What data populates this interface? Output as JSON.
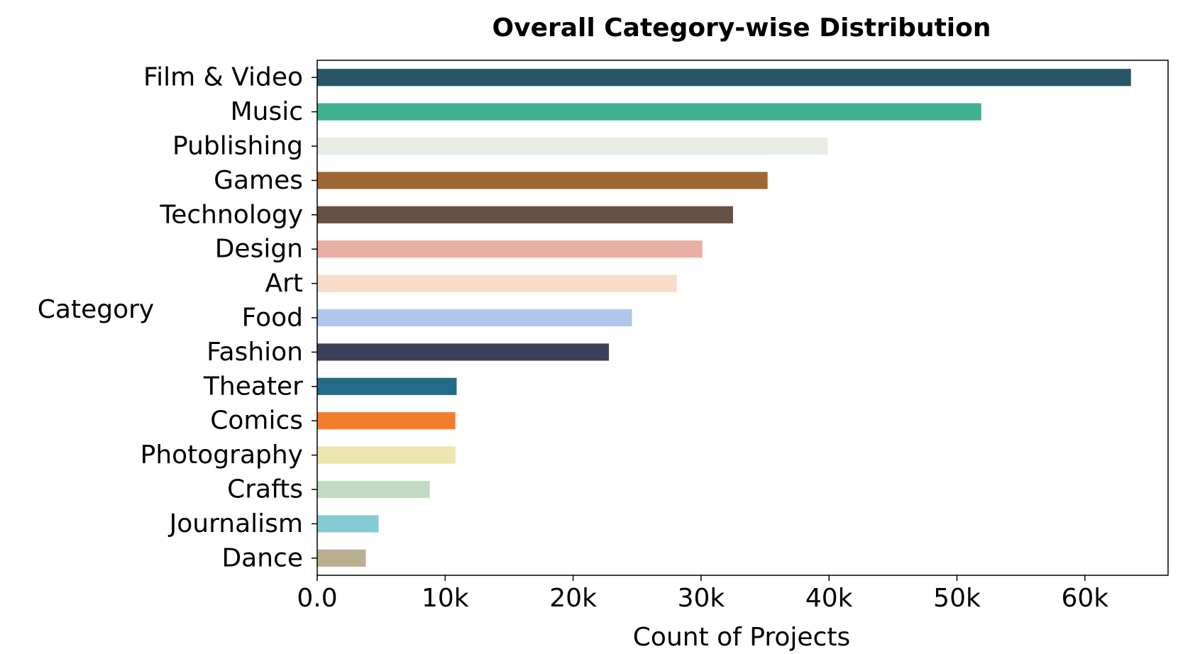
{
  "chart_data": {
    "type": "bar",
    "orientation": "horizontal",
    "title": "Overall Category-wise Distribution",
    "xlabel": "Count of Projects",
    "ylabel": "Category",
    "xlim": [
      0,
      66500
    ],
    "xticks": [
      0,
      10000,
      20000,
      30000,
      40000,
      50000,
      60000
    ],
    "xtick_labels": [
      "0.0",
      "10k",
      "20k",
      "30k",
      "40k",
      "50k",
      "60k"
    ],
    "grid": false,
    "legend": "none",
    "categories": [
      "Film & Video",
      "Music",
      "Publishing",
      "Games",
      "Technology",
      "Design",
      "Art",
      "Food",
      "Fashion",
      "Theater",
      "Comics",
      "Photography",
      "Crafts",
      "Journalism",
      "Dance"
    ],
    "values": [
      63600,
      51900,
      39900,
      35200,
      32500,
      30100,
      28100,
      24600,
      22800,
      10900,
      10800,
      10800,
      8800,
      4800,
      3800
    ],
    "colors": [
      "#2a5468",
      "#41b08f",
      "#e8ede3",
      "#9e6733",
      "#665245",
      "#e8afa3",
      "#f7dccc",
      "#aec7eb",
      "#3c4059",
      "#236b87",
      "#f47d2d",
      "#ebe5ae",
      "#c3d9c1",
      "#86ccd4",
      "#bab08f"
    ]
  }
}
